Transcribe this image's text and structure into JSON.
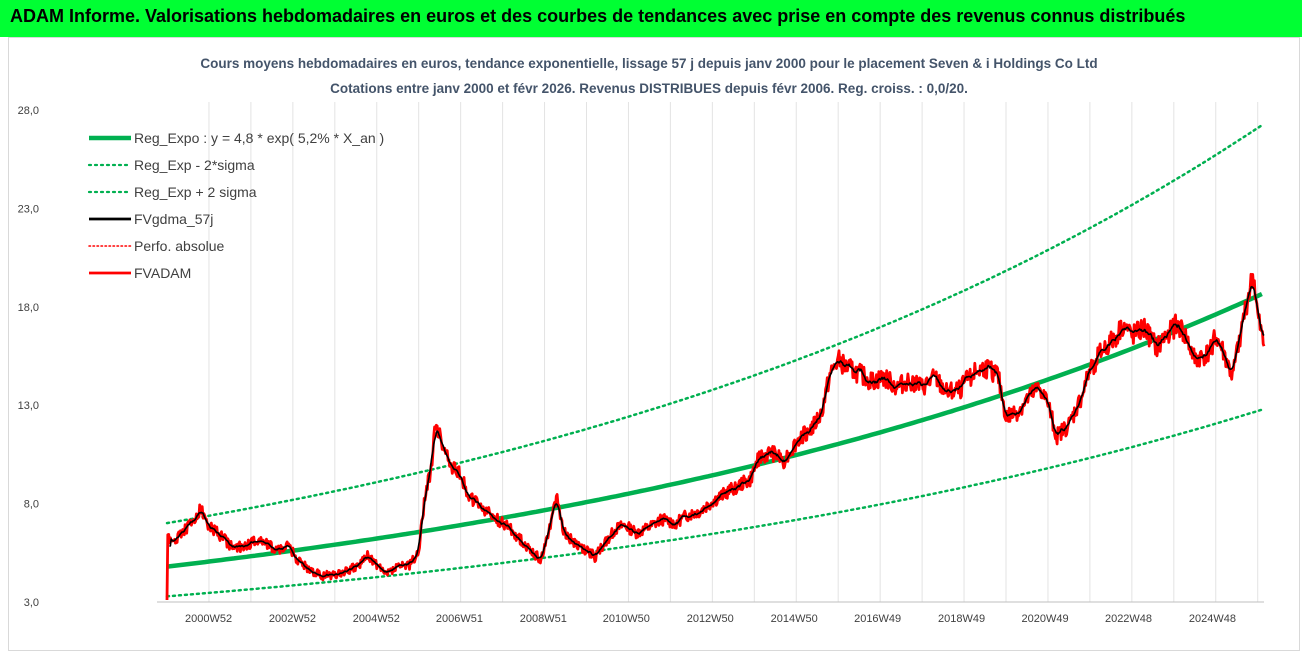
{
  "header": {
    "title": "ADAM Informe. Valorisations hebdomadaires en euros et des courbes de tendances avec prise en compte des revenus connus distribués",
    "background": "#00ff33"
  },
  "chart_data": {
    "type": "line",
    "title_line1": "Cours moyens hebdomadaires en euros, tendance exponentielle, lissage 57 j depuis janv 2000 pour le placement Seven & i Holdings Co Ltd",
    "title_line2": "Cotations entre janv 2000 et févr 2026. Revenus DISTRIBUES depuis févr 2006.  Reg. croiss. : 0,0/20.",
    "y_ticks": [
      "3,0",
      "8,0",
      "13,0",
      "18,0",
      "23,0",
      "28,0"
    ],
    "ylim": [
      3,
      28
    ],
    "x_range_years": [
      2000.0,
      2026.15
    ],
    "x_tick_labels": [
      "2000W52",
      "2002W52",
      "2004W52",
      "2006W51",
      "2008W51",
      "2010W50",
      "2012W50",
      "2014W50",
      "2016W49",
      "2018W49",
      "2020W49",
      "2022W48",
      "2024W48"
    ],
    "x_tick_years": [
      2000.99,
      2002.99,
      2004.99,
      2006.97,
      2008.97,
      2010.95,
      2012.95,
      2014.95,
      2016.94,
      2018.94,
      2020.93,
      2022.92,
      2024.92
    ],
    "gridlines": "vertical",
    "legend_position": "top-left",
    "regression": {
      "a": 4.8,
      "rate": 0.052,
      "sigma_factor": 1.46
    },
    "series": [
      {
        "name": "Reg_Expo : y = 4,8 * exp( 5,2% *  X_an )",
        "color": "#00b050",
        "style": "solid-thick"
      },
      {
        "name": "Reg_Exp - 2*sigma",
        "color": "#00b050",
        "style": "dotted"
      },
      {
        "name": "Reg_Exp + 2 sigma",
        "color": "#00b050",
        "style": "dotted"
      },
      {
        "name": "FVgdma_57j",
        "color": "#000000",
        "style": "solid"
      },
      {
        "name": "Perfo. absolue",
        "color": "#ff0000",
        "style": "dotted"
      },
      {
        "name": "FVADAM",
        "color": "#ff0000",
        "style": "solid"
      }
    ],
    "fvadam_keypoints": [
      [
        2000.0,
        3.1
      ],
      [
        2000.02,
        6.6
      ],
      [
        2000.1,
        5.9
      ],
      [
        2000.3,
        6.4
      ],
      [
        2000.6,
        7.0
      ],
      [
        2000.8,
        7.7
      ],
      [
        2001.0,
        6.9
      ],
      [
        2001.3,
        6.3
      ],
      [
        2001.6,
        5.7
      ],
      [
        2001.9,
        5.9
      ],
      [
        2002.2,
        6.2
      ],
      [
        2002.6,
        5.7
      ],
      [
        2002.9,
        5.8
      ],
      [
        2003.1,
        5.2
      ],
      [
        2003.4,
        4.6
      ],
      [
        2003.7,
        4.3
      ],
      [
        2004.0,
        4.4
      ],
      [
        2004.3,
        4.6
      ],
      [
        2004.6,
        4.9
      ],
      [
        2004.8,
        5.4
      ],
      [
        2005.0,
        4.9
      ],
      [
        2005.2,
        4.4
      ],
      [
        2005.5,
        4.8
      ],
      [
        2005.8,
        4.9
      ],
      [
        2006.0,
        5.5
      ],
      [
        2006.15,
        8.5
      ],
      [
        2006.3,
        9.8
      ],
      [
        2006.4,
        12.0
      ],
      [
        2006.6,
        10.8
      ],
      [
        2006.8,
        9.9
      ],
      [
        2007.0,
        9.5
      ],
      [
        2007.2,
        8.3
      ],
      [
        2007.5,
        7.8
      ],
      [
        2007.8,
        7.3
      ],
      [
        2008.1,
        6.9
      ],
      [
        2008.4,
        6.2
      ],
      [
        2008.7,
        5.6
      ],
      [
        2008.9,
        5.1
      ],
      [
        2009.0,
        5.9
      ],
      [
        2009.2,
        7.5
      ],
      [
        2009.3,
        8.4
      ],
      [
        2009.45,
        6.6
      ],
      [
        2009.7,
        6.0
      ],
      [
        2010.0,
        5.6
      ],
      [
        2010.2,
        5.3
      ],
      [
        2010.4,
        5.9
      ],
      [
        2010.7,
        6.7
      ],
      [
        2010.9,
        6.9
      ],
      [
        2011.2,
        6.5
      ],
      [
        2011.5,
        6.8
      ],
      [
        2011.8,
        7.2
      ],
      [
        2012.1,
        7.0
      ],
      [
        2012.4,
        7.4
      ],
      [
        2012.7,
        7.6
      ],
      [
        2013.0,
        8.1
      ],
      [
        2013.3,
        8.5
      ],
      [
        2013.6,
        8.9
      ],
      [
        2013.9,
        9.2
      ],
      [
        2014.1,
        10.3
      ],
      [
        2014.4,
        10.6
      ],
      [
        2014.7,
        10.2
      ],
      [
        2014.9,
        10.8
      ],
      [
        2015.1,
        11.4
      ],
      [
        2015.4,
        11.9
      ],
      [
        2015.6,
        12.6
      ],
      [
        2015.8,
        14.5
      ],
      [
        2016.0,
        15.3
      ],
      [
        2016.2,
        14.9
      ],
      [
        2016.5,
        14.6
      ],
      [
        2016.8,
        14.2
      ],
      [
        2017.1,
        14.4
      ],
      [
        2017.4,
        13.9
      ],
      [
        2017.7,
        14.3
      ],
      [
        2018.0,
        13.9
      ],
      [
        2018.3,
        14.4
      ],
      [
        2018.6,
        13.6
      ],
      [
        2018.9,
        13.8
      ],
      [
        2019.2,
        14.6
      ],
      [
        2019.5,
        14.9
      ],
      [
        2019.8,
        14.6
      ],
      [
        2020.0,
        12.4
      ],
      [
        2020.3,
        12.7
      ],
      [
        2020.5,
        13.3
      ],
      [
        2020.8,
        13.9
      ],
      [
        2021.0,
        13.1
      ],
      [
        2021.2,
        11.4
      ],
      [
        2021.5,
        12.0
      ],
      [
        2021.8,
        13.4
      ],
      [
        2022.0,
        14.8
      ],
      [
        2022.3,
        15.8
      ],
      [
        2022.6,
        16.4
      ],
      [
        2022.8,
        17.1
      ],
      [
        2023.0,
        16.5
      ],
      [
        2023.3,
        16.9
      ],
      [
        2023.6,
        15.9
      ],
      [
        2023.9,
        16.8
      ],
      [
        2024.1,
        17.1
      ],
      [
        2024.3,
        16.4
      ],
      [
        2024.5,
        15.3
      ],
      [
        2024.8,
        15.6
      ],
      [
        2025.0,
        16.5
      ],
      [
        2025.2,
        15.6
      ],
      [
        2025.4,
        14.4
      ],
      [
        2025.6,
        16.8
      ],
      [
        2025.8,
        18.8
      ],
      [
        2025.9,
        19.6
      ],
      [
        2026.0,
        17.5
      ],
      [
        2026.15,
        16.0
      ]
    ]
  }
}
